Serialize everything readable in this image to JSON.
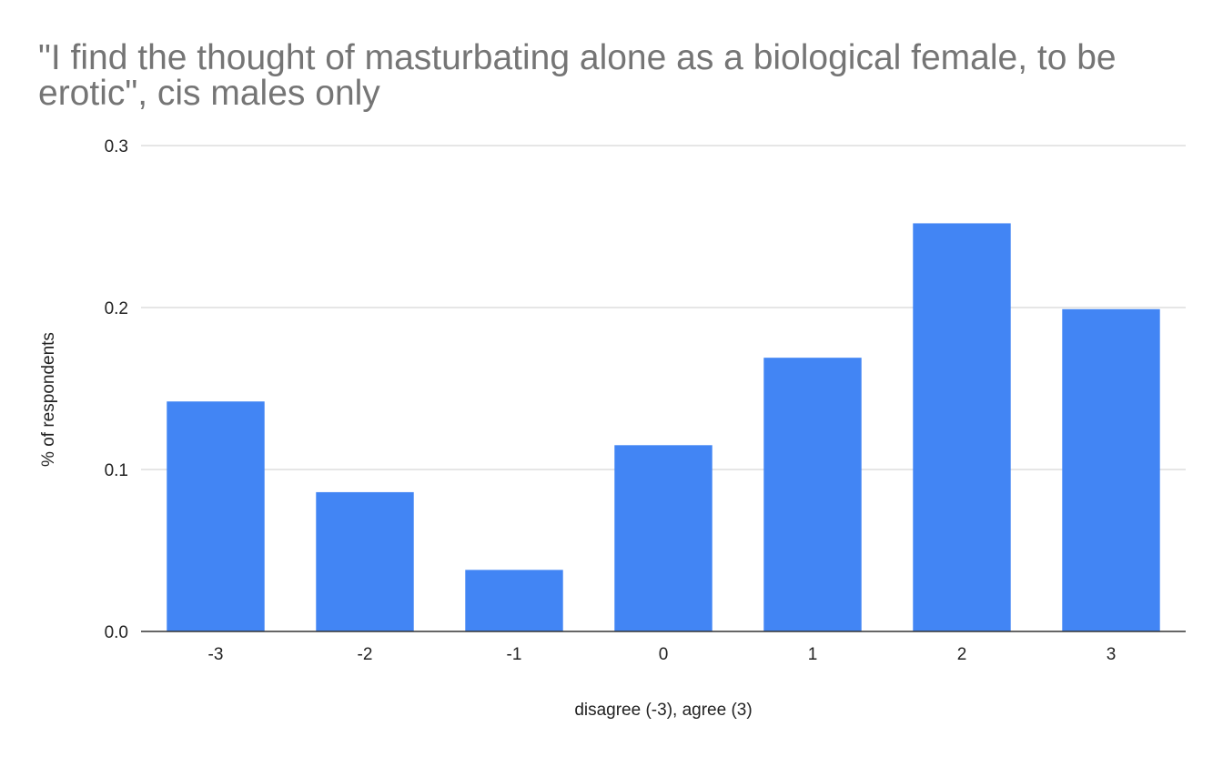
{
  "chart_data": {
    "type": "bar",
    "title_lines": [
      "\"I find the thought of masturbating alone as a biological female, to be",
      "erotic\", cis males only"
    ],
    "xlabel": "disagree (-3), agree (3)",
    "ylabel": "% of respondents",
    "categories": [
      "-3",
      "-2",
      "-1",
      "0",
      "1",
      "2",
      "3"
    ],
    "values": [
      0.142,
      0.086,
      0.038,
      0.115,
      0.169,
      0.252,
      0.199
    ],
    "ylim": [
      0,
      0.3
    ],
    "y_ticks": [
      "0.0",
      "0.1",
      "0.2",
      "0.3"
    ],
    "y_tick_values": [
      0,
      0.1,
      0.2,
      0.3
    ],
    "grid": true,
    "legend": "none",
    "colors": {
      "bar": "#4285f4",
      "grid": "#cccccc",
      "axis": "#333333"
    }
  }
}
